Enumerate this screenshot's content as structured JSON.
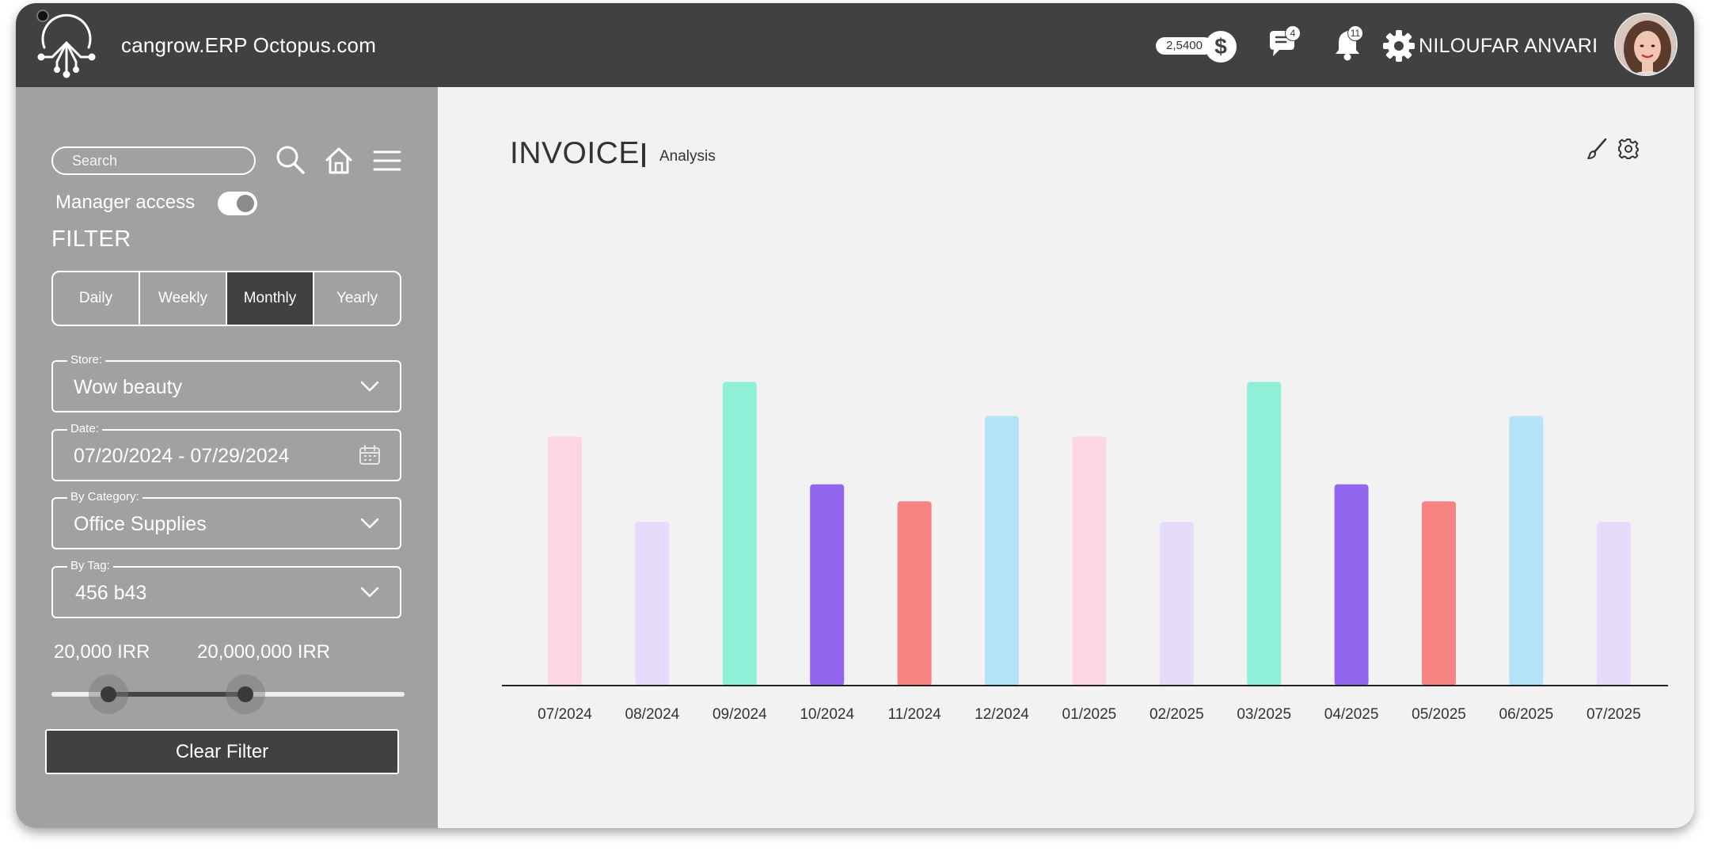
{
  "header": {
    "title": "cangrow.ERP Octopus.com",
    "balance": "2,5400",
    "currency_symbol": "$",
    "messages_count": "4",
    "notifications_count": "11",
    "user_name": "NILOUFAR ANVARI"
  },
  "sidebar": {
    "search_placeholder": "Search",
    "manager_access_label": "Manager access",
    "filter_title": "FILTER",
    "periods": [
      "Daily",
      "Weekly",
      "Monthly",
      "Yearly"
    ],
    "active_period": "Monthly",
    "store": {
      "label": "Store:",
      "value": "Wow beauty"
    },
    "date": {
      "label": "Date:",
      "value": "07/20/2024 - 07/29/2024"
    },
    "category": {
      "label": "By Category:",
      "value": "Office Supplies"
    },
    "tag": {
      "label": "By Tag:",
      "value": "456 b43"
    },
    "range": {
      "min_label": "20,000 IRR",
      "max_label": "20,000,000 IRR"
    },
    "clear_filter_label": "Clear Filter"
  },
  "main": {
    "title": "INVOICE",
    "subtitle": "Analysis"
  },
  "colors": {
    "header_bg": "#414141",
    "sidebar_bg": "#a1a1a1",
    "main_bg": "#f2f2f2"
  },
  "chart_data": {
    "type": "bar",
    "categories": [
      "07/2024",
      "08/2024",
      "09/2024",
      "10/2024",
      "11/2024",
      "12/2024",
      "01/2025",
      "02/2025",
      "03/2025",
      "04/2025",
      "05/2025",
      "06/2025",
      "07/2025"
    ],
    "values": [
      73,
      48,
      89,
      59,
      54,
      79,
      73,
      48,
      89,
      59,
      54,
      79,
      48
    ],
    "colors": [
      "#fed6e1",
      "#e7dbfc",
      "#8ef1d7",
      "#9366ef",
      "#f88383",
      "#b2e3f8",
      "#fed6e1",
      "#e7dbfc",
      "#8ef1d7",
      "#9366ef",
      "#f88383",
      "#b2e3f8",
      "#e7dbfc"
    ],
    "ylim": [
      0,
      100
    ],
    "grid": false,
    "legend": "none"
  }
}
